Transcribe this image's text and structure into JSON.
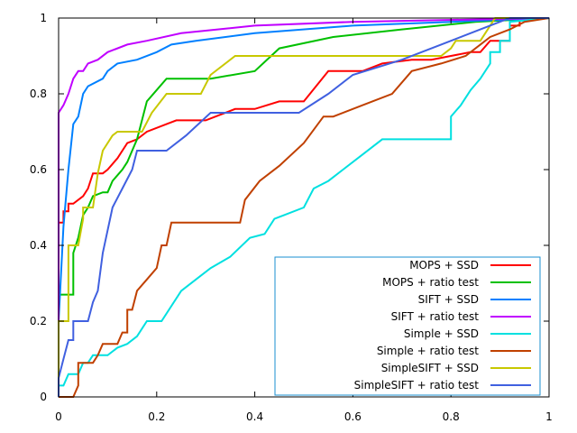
{
  "chart_data": {
    "type": "line",
    "title": "",
    "xlabel": "",
    "ylabel": "",
    "xlim": [
      0,
      1
    ],
    "ylim": [
      0,
      1
    ],
    "grid": false,
    "legend_position": "bottom-right",
    "x_ticks": [
      "0",
      "0.2",
      "0.4",
      "0.6",
      "0.8",
      "1"
    ],
    "x_tick_values": [
      0,
      0.2,
      0.4,
      0.6,
      0.8,
      1
    ],
    "y_ticks": [
      "0",
      "0.2",
      "0.4",
      "0.6",
      "0.8",
      "1"
    ],
    "y_tick_values": [
      0,
      0.2,
      0.4,
      0.6,
      0.8,
      1
    ],
    "series": [
      {
        "name": "MOPS + SSD",
        "color": "#ff0000",
        "points": [
          [
            0,
            0
          ],
          [
            0,
            0.46
          ],
          [
            0.01,
            0.46
          ],
          [
            0.01,
            0.49
          ],
          [
            0.02,
            0.49
          ],
          [
            0.02,
            0.51
          ],
          [
            0.03,
            0.51
          ],
          [
            0.05,
            0.53
          ],
          [
            0.06,
            0.55
          ],
          [
            0.07,
            0.59
          ],
          [
            0.09,
            0.59
          ],
          [
            0.1,
            0.6
          ],
          [
            0.12,
            0.63
          ],
          [
            0.14,
            0.67
          ],
          [
            0.16,
            0.68
          ],
          [
            0.18,
            0.7
          ],
          [
            0.22,
            0.72
          ],
          [
            0.24,
            0.73
          ],
          [
            0.3,
            0.73
          ],
          [
            0.32,
            0.74
          ],
          [
            0.36,
            0.76
          ],
          [
            0.4,
            0.76
          ],
          [
            0.45,
            0.78
          ],
          [
            0.5,
            0.78
          ],
          [
            0.55,
            0.86
          ],
          [
            0.62,
            0.86
          ],
          [
            0.66,
            0.88
          ],
          [
            0.72,
            0.89
          ],
          [
            0.76,
            0.89
          ],
          [
            0.8,
            0.9
          ],
          [
            0.84,
            0.91
          ],
          [
            0.86,
            0.91
          ],
          [
            0.88,
            0.94
          ],
          [
            0.92,
            0.94
          ],
          [
            0.92,
            0.98
          ],
          [
            0.94,
            0.98
          ],
          [
            0.94,
            1.0
          ],
          [
            1,
            1
          ]
        ]
      },
      {
        "name": "MOPS + ratio test",
        "color": "#00c000",
        "points": [
          [
            0,
            0
          ],
          [
            0,
            0.27
          ],
          [
            0.03,
            0.27
          ],
          [
            0.03,
            0.38
          ],
          [
            0.04,
            0.42
          ],
          [
            0.05,
            0.48
          ],
          [
            0.06,
            0.5
          ],
          [
            0.07,
            0.53
          ],
          [
            0.09,
            0.54
          ],
          [
            0.1,
            0.54
          ],
          [
            0.11,
            0.57
          ],
          [
            0.13,
            0.6
          ],
          [
            0.14,
            0.62
          ],
          [
            0.16,
            0.68
          ],
          [
            0.18,
            0.78
          ],
          [
            0.2,
            0.81
          ],
          [
            0.22,
            0.84
          ],
          [
            0.31,
            0.84
          ],
          [
            0.4,
            0.86
          ],
          [
            0.45,
            0.92
          ],
          [
            0.56,
            0.95
          ],
          [
            0.7,
            0.97
          ],
          [
            0.85,
            0.99
          ],
          [
            1,
            1
          ]
        ]
      },
      {
        "name": "SIFT + SSD",
        "color": "#0080ff",
        "points": [
          [
            0,
            0
          ],
          [
            0,
            0.2
          ],
          [
            0.01,
            0.45
          ],
          [
            0.02,
            0.6
          ],
          [
            0.03,
            0.72
          ],
          [
            0.04,
            0.74
          ],
          [
            0.05,
            0.8
          ],
          [
            0.06,
            0.82
          ],
          [
            0.09,
            0.84
          ],
          [
            0.1,
            0.86
          ],
          [
            0.12,
            0.88
          ],
          [
            0.16,
            0.89
          ],
          [
            0.2,
            0.91
          ],
          [
            0.23,
            0.93
          ],
          [
            0.28,
            0.94
          ],
          [
            0.4,
            0.96
          ],
          [
            0.6,
            0.98
          ],
          [
            0.8,
            0.99
          ],
          [
            1,
            1
          ]
        ]
      },
      {
        "name": "SIFT + ratio test",
        "color": "#c000ff",
        "points": [
          [
            0,
            0
          ],
          [
            0,
            0.6
          ],
          [
            0,
            0.75
          ],
          [
            0.01,
            0.77
          ],
          [
            0.02,
            0.8
          ],
          [
            0.03,
            0.84
          ],
          [
            0.04,
            0.86
          ],
          [
            0.05,
            0.86
          ],
          [
            0.06,
            0.88
          ],
          [
            0.08,
            0.89
          ],
          [
            0.1,
            0.91
          ],
          [
            0.14,
            0.93
          ],
          [
            0.18,
            0.94
          ],
          [
            0.25,
            0.96
          ],
          [
            0.4,
            0.98
          ],
          [
            0.6,
            0.99
          ],
          [
            1,
            1
          ]
        ]
      },
      {
        "name": "Simple + SSD",
        "color": "#00e0e0",
        "points": [
          [
            0,
            0
          ],
          [
            0,
            0.03
          ],
          [
            0.01,
            0.03
          ],
          [
            0.02,
            0.06
          ],
          [
            0.04,
            0.06
          ],
          [
            0.05,
            0.09
          ],
          [
            0.06,
            0.09
          ],
          [
            0.07,
            0.11
          ],
          [
            0.1,
            0.11
          ],
          [
            0.12,
            0.13
          ],
          [
            0.14,
            0.14
          ],
          [
            0.16,
            0.16
          ],
          [
            0.18,
            0.2
          ],
          [
            0.21,
            0.2
          ],
          [
            0.25,
            0.28
          ],
          [
            0.28,
            0.31
          ],
          [
            0.31,
            0.34
          ],
          [
            0.35,
            0.37
          ],
          [
            0.39,
            0.42
          ],
          [
            0.42,
            0.43
          ],
          [
            0.44,
            0.47
          ],
          [
            0.46,
            0.48
          ],
          [
            0.5,
            0.5
          ],
          [
            0.52,
            0.55
          ],
          [
            0.55,
            0.57
          ],
          [
            0.58,
            0.6
          ],
          [
            0.62,
            0.64
          ],
          [
            0.66,
            0.68
          ],
          [
            0.8,
            0.68
          ],
          [
            0.8,
            0.74
          ],
          [
            0.82,
            0.77
          ],
          [
            0.84,
            0.81
          ],
          [
            0.86,
            0.84
          ],
          [
            0.88,
            0.88
          ],
          [
            0.88,
            0.91
          ],
          [
            0.9,
            0.91
          ],
          [
            0.9,
            0.94
          ],
          [
            0.92,
            0.94
          ],
          [
            0.92,
            0.99
          ],
          [
            1,
            1
          ]
        ]
      },
      {
        "name": "Simple + ratio test",
        "color": "#c04000",
        "points": [
          [
            0,
            0
          ],
          [
            0.03,
            0
          ],
          [
            0.04,
            0.03
          ],
          [
            0.04,
            0.09
          ],
          [
            0.07,
            0.09
          ],
          [
            0.08,
            0.11
          ],
          [
            0.09,
            0.14
          ],
          [
            0.12,
            0.14
          ],
          [
            0.13,
            0.17
          ],
          [
            0.14,
            0.17
          ],
          [
            0.14,
            0.23
          ],
          [
            0.15,
            0.23
          ],
          [
            0.16,
            0.28
          ],
          [
            0.18,
            0.31
          ],
          [
            0.2,
            0.34
          ],
          [
            0.21,
            0.4
          ],
          [
            0.22,
            0.4
          ],
          [
            0.23,
            0.46
          ],
          [
            0.37,
            0.46
          ],
          [
            0.38,
            0.52
          ],
          [
            0.41,
            0.57
          ],
          [
            0.45,
            0.61
          ],
          [
            0.5,
            0.67
          ],
          [
            0.54,
            0.74
          ],
          [
            0.56,
            0.74
          ],
          [
            0.62,
            0.77
          ],
          [
            0.68,
            0.8
          ],
          [
            0.72,
            0.86
          ],
          [
            0.78,
            0.88
          ],
          [
            0.83,
            0.9
          ],
          [
            0.86,
            0.93
          ],
          [
            0.88,
            0.95
          ],
          [
            0.92,
            0.97
          ],
          [
            0.95,
            0.99
          ],
          [
            1,
            1
          ]
        ]
      },
      {
        "name": "SimpleSIFT + SSD",
        "color": "#c8c800",
        "points": [
          [
            0,
            0
          ],
          [
            0,
            0.2
          ],
          [
            0.02,
            0.2
          ],
          [
            0.02,
            0.4
          ],
          [
            0.04,
            0.4
          ],
          [
            0.05,
            0.47
          ],
          [
            0.05,
            0.5
          ],
          [
            0.07,
            0.5
          ],
          [
            0.08,
            0.59
          ],
          [
            0.09,
            0.65
          ],
          [
            0.11,
            0.69
          ],
          [
            0.12,
            0.7
          ],
          [
            0.17,
            0.7
          ],
          [
            0.19,
            0.75
          ],
          [
            0.22,
            0.8
          ],
          [
            0.29,
            0.8
          ],
          [
            0.31,
            0.85
          ],
          [
            0.36,
            0.9
          ],
          [
            0.78,
            0.9
          ],
          [
            0.8,
            0.92
          ],
          [
            0.81,
            0.94
          ],
          [
            0.86,
            0.94
          ],
          [
            0.88,
            0.98
          ],
          [
            0.89,
            1.0
          ],
          [
            1,
            1
          ]
        ]
      },
      {
        "name": "SimpleSIFT + ratio test",
        "color": "#4060e0",
        "points": [
          [
            0,
            0
          ],
          [
            0,
            0.05
          ],
          [
            0.01,
            0.1
          ],
          [
            0.02,
            0.15
          ],
          [
            0.03,
            0.15
          ],
          [
            0.03,
            0.2
          ],
          [
            0.06,
            0.2
          ],
          [
            0.07,
            0.25
          ],
          [
            0.08,
            0.28
          ],
          [
            0.09,
            0.38
          ],
          [
            0.1,
            0.44
          ],
          [
            0.11,
            0.5
          ],
          [
            0.13,
            0.55
          ],
          [
            0.15,
            0.6
          ],
          [
            0.16,
            0.65
          ],
          [
            0.22,
            0.65
          ],
          [
            0.26,
            0.69
          ],
          [
            0.31,
            0.75
          ],
          [
            0.49,
            0.75
          ],
          [
            0.55,
            0.8
          ],
          [
            0.6,
            0.85
          ],
          [
            0.7,
            0.89
          ],
          [
            0.78,
            0.93
          ],
          [
            0.86,
            0.97
          ],
          [
            0.92,
            1.0
          ],
          [
            1,
            1
          ]
        ]
      }
    ]
  }
}
